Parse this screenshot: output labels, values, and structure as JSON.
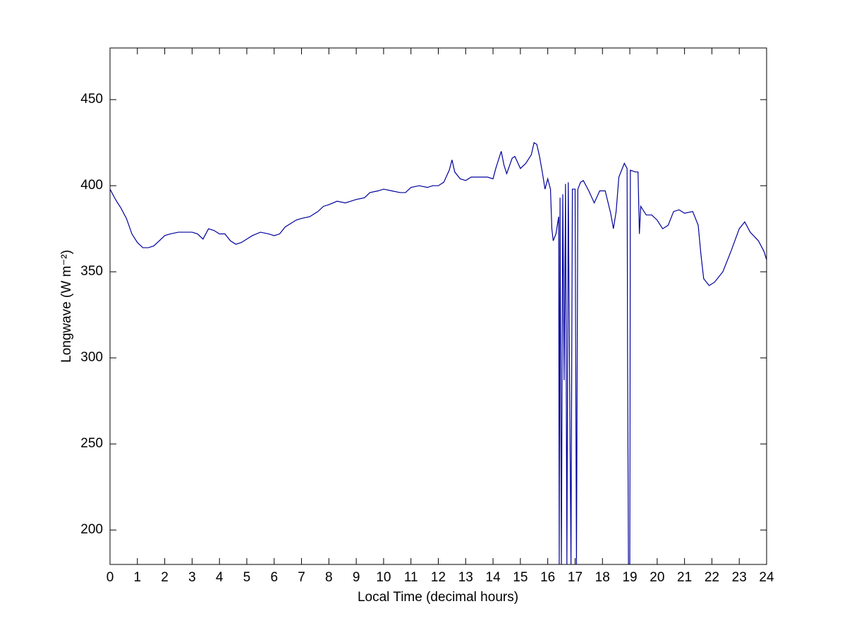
{
  "chart_data": {
    "type": "line",
    "xlabel": "Local Time (decimal hours)",
    "ylabel": "Longwave (W m⁻²)",
    "color": "#00009c",
    "x": [
      0,
      0.2,
      0.4,
      0.6,
      0.8,
      1.0,
      1.2,
      1.4,
      1.6,
      1.8,
      2.0,
      2.2,
      2.5,
      2.8,
      3.0,
      3.2,
      3.4,
      3.6,
      3.8,
      4.0,
      4.2,
      4.4,
      4.6,
      4.8,
      5.0,
      5.2,
      5.5,
      5.8,
      6.0,
      6.2,
      6.4,
      6.6,
      6.8,
      7.0,
      7.3,
      7.6,
      7.8,
      8.0,
      8.3,
      8.6,
      8.8,
      9.0,
      9.3,
      9.5,
      9.8,
      10.0,
      10.3,
      10.6,
      10.8,
      11.0,
      11.3,
      11.6,
      11.8,
      12.0,
      12.2,
      12.4,
      12.5,
      12.6,
      12.8,
      13.0,
      13.2,
      13.5,
      13.8,
      14.0,
      14.1,
      14.2,
      14.3,
      14.4,
      14.5,
      14.7,
      14.8,
      15.0,
      15.2,
      15.4,
      15.5,
      15.6,
      15.7,
      15.8,
      15.9,
      16.0,
      16.1,
      16.15,
      16.2,
      16.3,
      16.4,
      16.42,
      16.45,
      16.5,
      16.55,
      16.6,
      16.65,
      16.7,
      16.75,
      16.8,
      16.85,
      16.9,
      17.0,
      17.05,
      17.1,
      17.2,
      17.3,
      17.5,
      17.7,
      17.9,
      18.1,
      18.3,
      18.4,
      18.5,
      18.6,
      18.8,
      18.9,
      18.92,
      18.95,
      19.0,
      19.02,
      19.2,
      19.3,
      19.35,
      19.4,
      19.6,
      19.8,
      20.0,
      20.2,
      20.4,
      20.6,
      20.8,
      21.0,
      21.3,
      21.5,
      21.6,
      21.7,
      21.9,
      22.1,
      22.4,
      22.7,
      23.0,
      23.2,
      23.4,
      23.7,
      23.9,
      24.0
    ],
    "values": [
      398,
      392,
      387,
      381,
      372,
      367,
      364,
      364,
      365,
      368,
      371,
      372,
      373,
      373,
      373,
      372,
      369,
      375,
      374,
      372,
      372,
      368,
      366,
      367,
      369,
      371,
      373,
      372,
      371,
      372,
      376,
      378,
      380,
      381,
      382,
      385,
      388,
      389,
      391,
      390,
      391,
      392,
      393,
      396,
      397,
      398,
      397,
      396,
      396,
      399,
      400,
      399,
      400,
      400,
      402,
      409,
      415,
      408,
      404,
      403,
      405,
      405,
      405,
      404,
      410,
      415,
      420,
      412,
      407,
      416,
      417,
      410,
      413,
      418,
      425,
      424,
      417,
      408,
      398,
      404,
      398,
      375,
      368,
      372,
      382,
      180,
      393,
      180,
      395,
      287,
      401,
      180,
      402,
      287,
      180,
      398,
      398,
      180,
      398,
      402,
      403,
      397,
      390,
      397,
      397,
      384,
      375,
      385,
      405,
      413,
      410,
      295,
      180,
      180,
      409,
      408,
      408,
      372,
      388,
      383,
      383,
      380,
      375,
      377,
      385,
      386,
      384,
      385,
      377,
      360,
      346,
      342,
      344,
      350,
      362,
      375,
      379,
      373,
      368,
      362,
      357
    ],
    "xlim": [
      0,
      24
    ],
    "xticks": [
      0,
      1,
      2,
      3,
      4,
      5,
      6,
      7,
      8,
      9,
      10,
      11,
      12,
      13,
      14,
      15,
      16,
      17,
      18,
      19,
      20,
      21,
      22,
      23,
      24
    ],
    "ylim": [
      180,
      480
    ],
    "yticks": [
      200,
      250,
      300,
      350,
      400,
      450
    ]
  }
}
